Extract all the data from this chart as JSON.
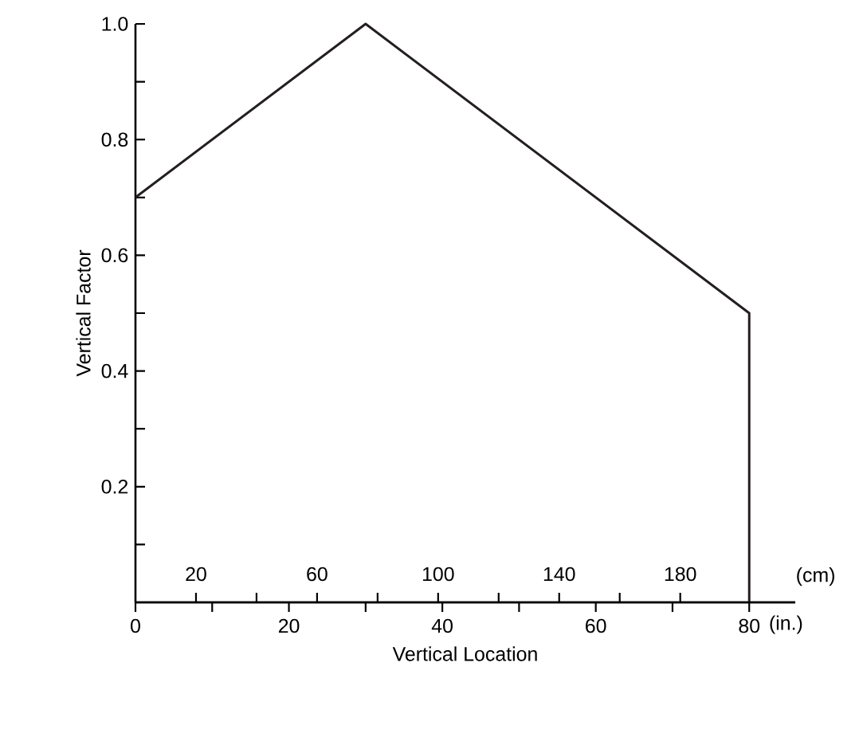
{
  "chart_data": {
    "type": "line",
    "xlabel": "Vertical Location",
    "ylabel": "Vertical Factor",
    "x2label": "(cm)",
    "annotations": [
      "(in.)"
    ],
    "x": [
      0,
      30,
      80,
      80
    ],
    "series": [
      {
        "color": "#231f20",
        "values": [
          0.7,
          1.0,
          0.5,
          0
        ]
      }
    ],
    "xlim": [
      0,
      86
    ],
    "ylim": [
      0,
      1
    ],
    "x2lim": [
      0,
      218
    ],
    "xticks": [
      0,
      {
        "value": 10,
        "label": null
      },
      20,
      {
        "value": 30,
        "label": null
      },
      40,
      {
        "value": 50,
        "label": null
      },
      60,
      {
        "value": 70,
        "label": null
      },
      80
    ],
    "x2ticks": [
      20,
      {
        "value": 40,
        "label": null
      },
      60,
      {
        "value": 80,
        "label": null
      },
      100,
      {
        "value": 120,
        "label": null
      },
      140,
      {
        "value": 160,
        "label": null
      },
      180
    ],
    "yticks": [
      {
        "value": 0.1,
        "label": null
      },
      0.2,
      {
        "value": 0.3,
        "label": null
      },
      0.4,
      {
        "value": 0.5,
        "label": null
      },
      0.6,
      {
        "value": 0.7,
        "label": null
      },
      0.8,
      {
        "value": 0.9,
        "label": null
      },
      {
        "value": 1,
        "label": "1.0"
      }
    ],
    "marker": "none",
    "line_style": "solid"
  }
}
